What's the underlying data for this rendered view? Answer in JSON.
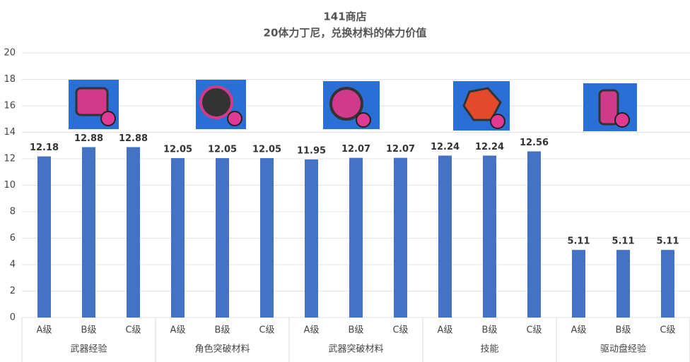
{
  "chart_data": {
    "type": "bar",
    "title": "141商店",
    "subtitle": "20体力丁尼，兑换材料的体力价值",
    "categories": [
      "A级",
      "B级",
      "C级",
      "A级",
      "B级",
      "C级",
      "A级",
      "B级",
      "C级",
      "A级",
      "B级",
      "C级",
      "A级",
      "B级",
      "C级"
    ],
    "groups": [
      "武器经验",
      "角色突破材料",
      "武器突破材料",
      "技能",
      "驱动盘经验"
    ],
    "values": [
      12.18,
      12.88,
      12.88,
      12.05,
      12.05,
      12.05,
      11.95,
      12.07,
      12.07,
      12.24,
      12.24,
      12.56,
      5.11,
      5.11,
      5.11
    ],
    "color": "#4472c4",
    "ylim": [
      0,
      20
    ],
    "yticks": [
      0,
      2,
      4,
      6,
      8,
      10,
      12,
      14,
      16,
      18,
      20
    ],
    "grid": true
  }
}
